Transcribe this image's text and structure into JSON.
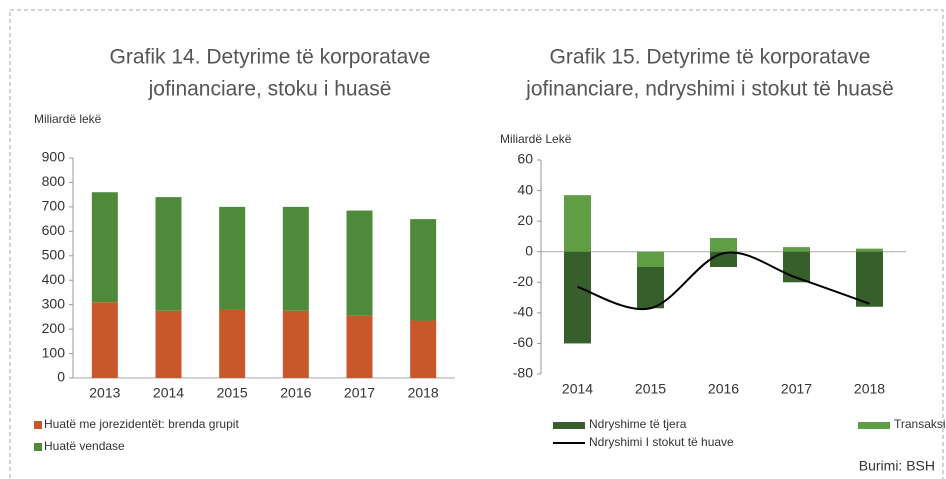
{
  "chart_data": [
    {
      "type": "stacked_bar",
      "title": [
        "Grafik 14. Detyrime të korporatave",
        "jofinanciare, stoku i huasë"
      ],
      "y_label": "Miliardë lekë",
      "categories": [
        "2013",
        "2014",
        "2015",
        "2016",
        "2017",
        "2018"
      ],
      "series": [
        {
          "name": "Huatë me jorezidentët: brenda grupit",
          "color": "#c8582a",
          "values": [
            310,
            275,
            280,
            275,
            255,
            235
          ]
        },
        {
          "name": "Huatë vendase",
          "color": "#4e8a3a",
          "values": [
            450,
            465,
            420,
            425,
            430,
            415
          ]
        }
      ],
      "ylim": [
        0,
        900
      ],
      "yticks": [
        0,
        100,
        200,
        300,
        400,
        500,
        600,
        700,
        800,
        900
      ]
    },
    {
      "type": "stacked_bar_line",
      "title": [
        "Grafik 15. Detyrime të korporatave",
        "jofinanciare, ndryshimi i stokut të huasë"
      ],
      "y_label": "Miliardë Lekë",
      "categories": [
        "2014",
        "2015",
        "2016",
        "2017",
        "2018"
      ],
      "series": [
        {
          "name": "Transaksionet",
          "color": "#5f9e44",
          "values": [
            37,
            -10,
            9,
            3,
            2
          ]
        },
        {
          "name": "Ndryshime të tjera",
          "color": "#375f2b",
          "values": [
            -60,
            -27,
            -10,
            -20,
            -36
          ]
        },
        {
          "name": "Ndryshimi I stokut të huave",
          "color": "#000000",
          "type": "line",
          "values": [
            -23,
            -37,
            -1,
            -17,
            -34
          ]
        }
      ],
      "ylim": [
        -80,
        60
      ],
      "yticks": [
        -80,
        -60,
        -40,
        -20,
        0,
        20,
        40,
        60
      ]
    }
  ],
  "source": "Burimi: BSH"
}
